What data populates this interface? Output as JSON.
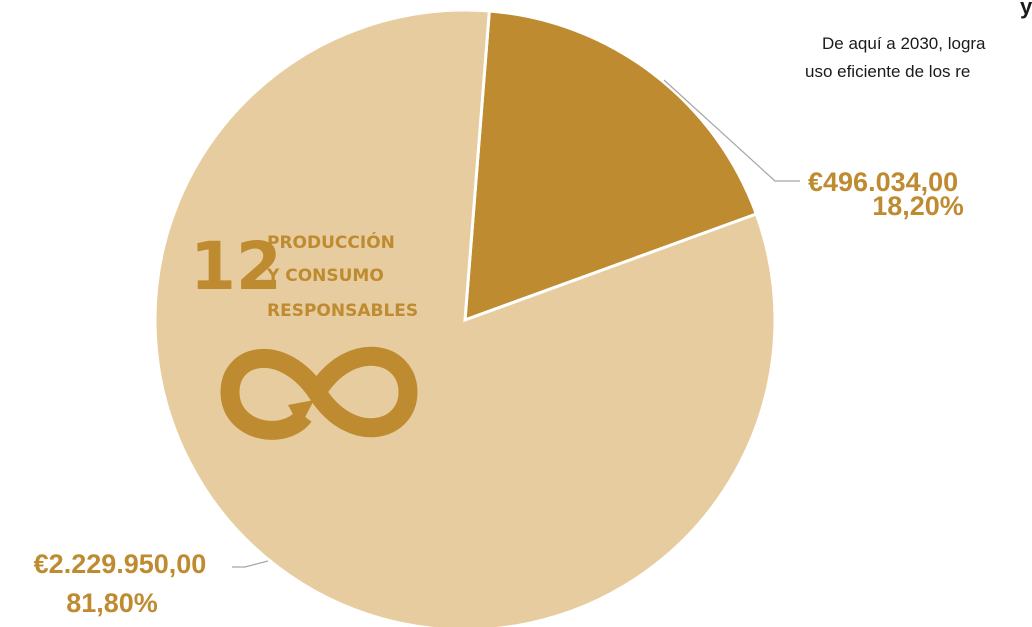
{
  "chart_data": {
    "type": "pie",
    "title_fragment": "y",
    "subtitle_lines": [
      "De aquí a 2030, logra",
      "uso eficiente de los re"
    ],
    "slices": [
      {
        "value": 496034.0,
        "percent": 18.2,
        "value_label": "€496.034,00",
        "percent_label": "18,20%",
        "color": "#bf8b30"
      },
      {
        "value": 2229950.0,
        "percent": 81.8,
        "value_label": "€2.229.950,00",
        "percent_label": "81,80%",
        "color": "#e7cc9f"
      }
    ],
    "label_color": "#bf8b30",
    "leader_color": "#a6a6a6",
    "logo": {
      "number": "12",
      "words": [
        "PRODUCCIÓN",
        "Y CONSUMO",
        "RESPONSABLES"
      ],
      "icon": "infinity-arrow-icon",
      "color": "#bf8b30"
    }
  }
}
